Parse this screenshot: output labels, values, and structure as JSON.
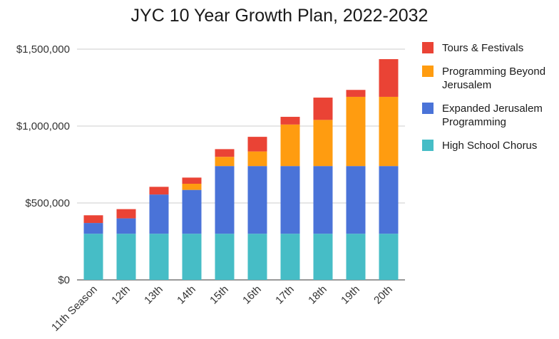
{
  "chart_data": {
    "type": "bar",
    "stacked": true,
    "title": "JYC 10 Year Growth Plan, 2022-2032",
    "xlabel": "",
    "ylabel": "",
    "categories": [
      "11th Season",
      "12th",
      "13th",
      "14th",
      "15th",
      "16th",
      "17th",
      "18th",
      "19th",
      "20th"
    ],
    "ylim": [
      0,
      1500000
    ],
    "yticks": [
      {
        "value": 0,
        "label": "$0"
      },
      {
        "value": 500000,
        "label": "$500,000"
      },
      {
        "value": 1000000,
        "label": "$1,000,000"
      },
      {
        "value": 1500000,
        "label": "$1,500,000"
      }
    ],
    "grid": true,
    "legend_position": "right",
    "series": [
      {
        "name": "High School Chorus",
        "color": "#46BDC6",
        "values": [
          300000,
          300000,
          300000,
          300000,
          300000,
          300000,
          300000,
          300000,
          300000,
          300000
        ]
      },
      {
        "name": "Expanded Jerusalem Programming",
        "color": "#4A73D8",
        "values": [
          70000,
          100000,
          255000,
          285000,
          440000,
          440000,
          440000,
          440000,
          440000,
          440000
        ]
      },
      {
        "name": "Programming Beyond Jerusalem",
        "color": "#FF9C10",
        "values": [
          0,
          0,
          0,
          40000,
          60000,
          95000,
          270000,
          300000,
          450000,
          450000
        ]
      },
      {
        "name": "Tours & Festivals",
        "color": "#EA4335",
        "values": [
          50000,
          60000,
          50000,
          40000,
          50000,
          95000,
          50000,
          145000,
          45000,
          245000
        ]
      }
    ],
    "legend_order": [
      3,
      2,
      1,
      0
    ]
  }
}
